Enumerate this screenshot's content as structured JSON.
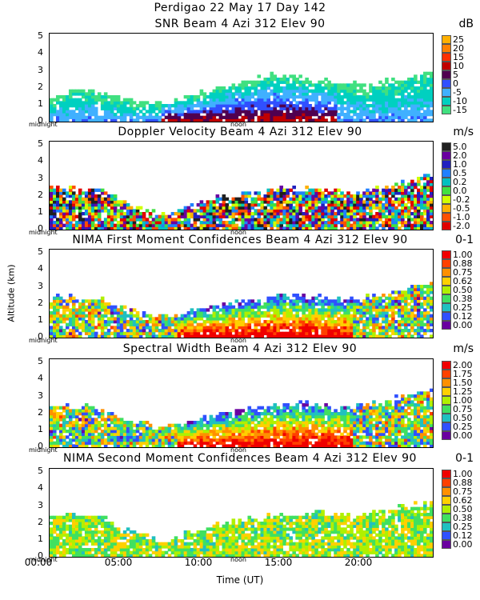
{
  "header": {
    "line1": "Perdigao  22 May 17 Day 142"
  },
  "ylabel": "Altitude (km)",
  "xlabel": "Time (UT)",
  "xticks": [
    "00:00",
    "05:00",
    "10:00",
    "15:00",
    "20:00"
  ],
  "marker_left": "midnight",
  "marker_mid": "noon",
  "panels": [
    {
      "id": "snr",
      "title": "SNR Beam 4 Azi 312 Elev 90",
      "unit": "dB",
      "yticks": [
        "5",
        "4",
        "3",
        "2",
        "1",
        "0"
      ],
      "colorbar_labels": [
        "25",
        "20",
        "15",
        "10",
        "5",
        "0",
        "-5",
        "-10",
        "-15"
      ],
      "colorbar_colors": [
        "#ffb000",
        "#ff8000",
        "#ff3000",
        "#c00000",
        "#500050",
        "#3050ff",
        "#40b0ff",
        "#00d0c0",
        "#40e080"
      ]
    },
    {
      "id": "doppler",
      "title": "Doppler Velocity Beam 4 Azi 312 Elev 90",
      "unit": "m/s",
      "yticks": [
        "5",
        "4",
        "3",
        "2",
        "1",
        "0"
      ],
      "colorbar_labels": [
        "5.0",
        "2.0",
        "1.0",
        "0.5",
        "0.2",
        "0.0",
        "-0.2",
        "-0.5",
        "-1.0",
        "-2.0"
      ],
      "colorbar_colors": [
        "#202020",
        "#6a00a0",
        "#2020c0",
        "#2080ff",
        "#00c0c0",
        "#40e040",
        "#d0ff00",
        "#ffb000",
        "#ff5000",
        "#e00000"
      ]
    },
    {
      "id": "nima1",
      "title": "NIMA First Moment Confidences Beam 4 Azi 312 Elev 90",
      "unit": "0-1",
      "yticks": [
        "5",
        "4",
        "3",
        "2",
        "1",
        "0"
      ],
      "colorbar_labels": [
        "1.00",
        "0.88",
        "0.75",
        "0.62",
        "0.50",
        "0.38",
        "0.25",
        "0.12",
        "0.00"
      ],
      "colorbar_colors": [
        "#f00000",
        "#ff4000",
        "#ff9000",
        "#ffd000",
        "#b0f000",
        "#40e060",
        "#20c0c0",
        "#3050ff",
        "#6a00a0"
      ]
    },
    {
      "id": "width",
      "title": "Spectral Width Beam 4 Azi 312 Elev 90",
      "unit": "m/s",
      "yticks": [
        "5",
        "4",
        "3",
        "2",
        "1",
        "0"
      ],
      "colorbar_labels": [
        "2.00",
        "1.75",
        "1.50",
        "1.25",
        "1.00",
        "0.75",
        "0.50",
        "0.25",
        "0.00"
      ],
      "colorbar_colors": [
        "#f00000",
        "#ff4000",
        "#ff9000",
        "#ffd000",
        "#b0f000",
        "#40e060",
        "#20c0c0",
        "#3050ff",
        "#6a00a0"
      ]
    },
    {
      "id": "nima2",
      "title": "NIMA Second Moment Confidences Beam 4 Azi 312 Elev 90",
      "unit": "0-1",
      "yticks": [
        "5",
        "4",
        "3",
        "2",
        "1",
        "0"
      ],
      "colorbar_labels": [
        "1.00",
        "0.88",
        "0.75",
        "0.62",
        "0.50",
        "0.38",
        "0.25",
        "0.12",
        "0.00"
      ],
      "colorbar_colors": [
        "#f00000",
        "#ff4000",
        "#ff9000",
        "#ffd000",
        "#b0f000",
        "#40e060",
        "#20c0c0",
        "#3050ff",
        "#6a00a0"
      ]
    }
  ],
  "chart_data": {
    "type": "heatmap",
    "title": "Perdigao  22 May 17 Day 142",
    "xlabel": "Time (UT)",
    "ylabel": "Altitude (km)",
    "xlim_hours": [
      0,
      24
    ],
    "ylim_km": [
      0,
      5
    ],
    "grid": false,
    "panels": [
      {
        "name": "SNR Beam 4 Azi 312 Elev 90",
        "unit": "dB",
        "scale": [
          -15,
          25
        ],
        "echo_top_km": [
          [
            0,
            1.3
          ],
          [
            2,
            2.0
          ],
          [
            4,
            1.5
          ],
          [
            6,
            1.0
          ],
          [
            8,
            1.3
          ],
          [
            10,
            1.8
          ],
          [
            12,
            2.3
          ],
          [
            14,
            2.8
          ],
          [
            16,
            2.5
          ],
          [
            18,
            2.3
          ],
          [
            20,
            2.2
          ],
          [
            22,
            2.5
          ],
          [
            24,
            3.0
          ]
        ]
      },
      {
        "name": "Doppler Velocity Beam 4 Azi 312 Elev 90",
        "unit": "m/s",
        "scale": [
          -2.0,
          5.0
        ],
        "echo_top_km": [
          [
            0,
            2.5
          ],
          [
            3,
            2.3
          ],
          [
            5,
            1.5
          ],
          [
            7,
            0.8
          ],
          [
            9,
            1.6
          ],
          [
            11,
            2.0
          ],
          [
            13,
            2.2
          ],
          [
            15,
            2.4
          ],
          [
            17,
            2.4
          ],
          [
            19,
            2.2
          ],
          [
            21,
            2.5
          ],
          [
            24,
            3.3
          ]
        ]
      },
      {
        "name": "NIMA First Moment Confidences Beam 4 Azi 312 Elev 90",
        "unit": "0-1",
        "scale": [
          0.0,
          1.0
        ],
        "echo_top_km": [
          [
            0,
            2.5
          ],
          [
            3,
            2.3
          ],
          [
            5,
            1.6
          ],
          [
            7,
            1.2
          ],
          [
            9,
            1.6
          ],
          [
            11,
            2.0
          ],
          [
            13,
            2.3
          ],
          [
            15,
            2.5
          ],
          [
            17,
            2.4
          ],
          [
            19,
            2.2
          ],
          [
            21,
            2.5
          ],
          [
            24,
            3.3
          ]
        ]
      },
      {
        "name": "Spectral Width Beam 4 Azi 312 Elev 90",
        "unit": "m/s",
        "scale": [
          0.0,
          2.0
        ],
        "echo_top_km": [
          [
            0,
            2.5
          ],
          [
            3,
            2.3
          ],
          [
            5,
            1.6
          ],
          [
            7,
            1.2
          ],
          [
            9,
            1.6
          ],
          [
            11,
            2.0
          ],
          [
            13,
            2.3
          ],
          [
            15,
            2.6
          ],
          [
            17,
            2.5
          ],
          [
            19,
            2.3
          ],
          [
            21,
            2.7
          ],
          [
            24,
            3.4
          ]
        ]
      },
      {
        "name": "NIMA Second Moment Confidences Beam 4 Azi 312 Elev 90",
        "unit": "0-1",
        "scale": [
          0.0,
          1.0
        ],
        "echo_top_km": [
          [
            0,
            2.6
          ],
          [
            3,
            2.4
          ],
          [
            5,
            1.5
          ],
          [
            7,
            0.9
          ],
          [
            9,
            1.5
          ],
          [
            11,
            2.0
          ],
          [
            13,
            2.3
          ],
          [
            15,
            2.5
          ],
          [
            17,
            2.6
          ],
          [
            19,
            2.4
          ],
          [
            21,
            2.7
          ],
          [
            24,
            3.3
          ]
        ]
      }
    ]
  }
}
